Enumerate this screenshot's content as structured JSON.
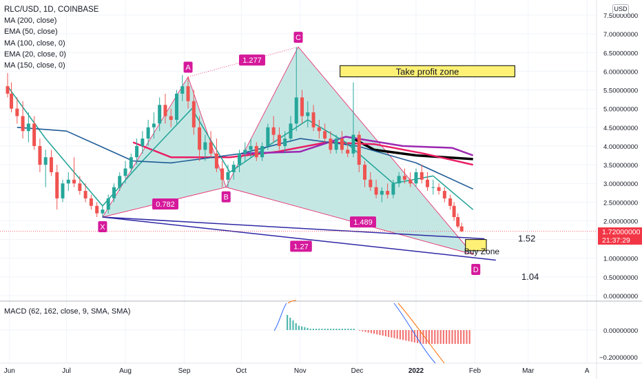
{
  "header": {
    "symbol_title": "RLC/USD, 1D, COINBASE",
    "indicators": [
      "MA (200, close)",
      "EMA (50, close)",
      "MA (100, close, 0)",
      "EMA (20, close, 0)",
      "MA (150, close, 0)"
    ],
    "macd_label": "MACD (62, 162, close, 9, SMA, SMA)",
    "currency": "USD"
  },
  "price_tag": {
    "price": "1.72000000",
    "countdown": "21:37:29"
  },
  "colors": {
    "up": "#26a69a",
    "down": "#ef5350",
    "pattern_fill": "#b2dfdb",
    "pattern_line": "#e91e63",
    "point_label_bg": "#d5199b",
    "wedge_line": "#2e27a4",
    "ma200": "#000000",
    "ema50": "#e91e63",
    "ma100": "#9c27b0",
    "ema20": "#26a69a",
    "ma150": "#1e5b96",
    "zone_fill": "#fff176"
  },
  "chart_data": {
    "type": "candlestick",
    "title": "RLC/USD, 1D, COINBASE",
    "x_tick_labels": [
      "Jun",
      "Jul",
      "Aug",
      "Sep",
      "Oct",
      "Nov",
      "Dec",
      "2022",
      "Feb",
      "Mar",
      "A"
    ],
    "y_tick_labels": [
      "7.50000000",
      "7.00000000",
      "6.50000000",
      "6.00000000",
      "5.50000000",
      "5.00000000",
      "4.50000000",
      "4.00000000",
      "3.50000000",
      "3.00000000",
      "2.50000000",
      "2.00000000",
      "1.50000000",
      "1.00000000",
      "0.50000000",
      "0.00000000"
    ],
    "ylim": [
      0,
      7.8
    ],
    "last_price": 1.72,
    "pattern_points": [
      {
        "label": "X",
        "date": "2021-07-20",
        "price": 2.1
      },
      {
        "label": "A",
        "date": "2021-09-03",
        "price": 5.85
      },
      {
        "label": "B",
        "date": "2021-09-23",
        "price": 2.9
      },
      {
        "label": "C",
        "date": "2021-10-31",
        "price": 6.65
      },
      {
        "label": "D",
        "date": "2022-01-31",
        "price": 1.1
      }
    ],
    "ratios": [
      {
        "label": "0.782",
        "leg": "XA-B"
      },
      {
        "label": "1.277",
        "leg": "A-C"
      },
      {
        "label": "1.489",
        "leg": "B-D"
      },
      {
        "label": "1.27",
        "leg": "X-D"
      }
    ],
    "zones": [
      {
        "label": "Take profit zone",
        "price_low": 5.85,
        "price_high": 6.15
      },
      {
        "label": "Buy Zone",
        "price_low": 1.2,
        "price_high": 1.5
      }
    ],
    "level_labels": [
      "1.52",
      "1.04"
    ],
    "ohlc": [
      {
        "d": "2021-05-31",
        "o": 5.6,
        "h": 5.95,
        "l": 5.3,
        "c": 5.4
      },
      {
        "d": "2021-06-02",
        "o": 5.4,
        "h": 5.7,
        "l": 4.9,
        "c": 5.0
      },
      {
        "d": "2021-06-05",
        "o": 5.0,
        "h": 5.3,
        "l": 4.6,
        "c": 4.8
      },
      {
        "d": "2021-06-08",
        "o": 4.8,
        "h": 5.2,
        "l": 4.2,
        "c": 4.4
      },
      {
        "d": "2021-06-11",
        "o": 4.4,
        "h": 4.9,
        "l": 4.1,
        "c": 4.6
      },
      {
        "d": "2021-06-14",
        "o": 4.6,
        "h": 4.8,
        "l": 3.9,
        "c": 4.0
      },
      {
        "d": "2021-06-17",
        "o": 4.0,
        "h": 4.2,
        "l": 3.3,
        "c": 3.5
      },
      {
        "d": "2021-06-20",
        "o": 3.5,
        "h": 3.9,
        "l": 2.9,
        "c": 3.7
      },
      {
        "d": "2021-06-23",
        "o": 3.7,
        "h": 3.9,
        "l": 3.2,
        "c": 3.3
      },
      {
        "d": "2021-06-26",
        "o": 3.3,
        "h": 3.5,
        "l": 2.3,
        "c": 2.6
      },
      {
        "d": "2021-06-29",
        "o": 2.6,
        "h": 3.1,
        "l": 2.5,
        "c": 3.0
      },
      {
        "d": "2021-07-02",
        "o": 3.0,
        "h": 3.3,
        "l": 2.8,
        "c": 3.1
      },
      {
        "d": "2021-07-05",
        "o": 3.1,
        "h": 3.7,
        "l": 2.9,
        "c": 3.0
      },
      {
        "d": "2021-07-08",
        "o": 3.0,
        "h": 3.2,
        "l": 2.7,
        "c": 2.8
      },
      {
        "d": "2021-07-11",
        "o": 2.8,
        "h": 3.0,
        "l": 2.5,
        "c": 2.6
      },
      {
        "d": "2021-07-14",
        "o": 2.6,
        "h": 2.7,
        "l": 2.3,
        "c": 2.4
      },
      {
        "d": "2021-07-17",
        "o": 2.4,
        "h": 2.5,
        "l": 2.1,
        "c": 2.2
      },
      {
        "d": "2021-07-20",
        "o": 2.2,
        "h": 2.4,
        "l": 2.1,
        "c": 2.3
      },
      {
        "d": "2021-07-23",
        "o": 2.3,
        "h": 2.7,
        "l": 2.2,
        "c": 2.6
      },
      {
        "d": "2021-07-26",
        "o": 2.6,
        "h": 3.0,
        "l": 2.5,
        "c": 2.9
      },
      {
        "d": "2021-07-29",
        "o": 2.9,
        "h": 3.3,
        "l": 2.8,
        "c": 3.2
      },
      {
        "d": "2021-08-01",
        "o": 3.2,
        "h": 3.6,
        "l": 3.0,
        "c": 3.4
      },
      {
        "d": "2021-08-04",
        "o": 3.4,
        "h": 3.8,
        "l": 3.3,
        "c": 3.7
      },
      {
        "d": "2021-08-07",
        "o": 3.7,
        "h": 4.2,
        "l": 3.5,
        "c": 4.0
      },
      {
        "d": "2021-08-10",
        "o": 4.0,
        "h": 4.4,
        "l": 3.8,
        "c": 4.2
      },
      {
        "d": "2021-08-13",
        "o": 4.2,
        "h": 4.7,
        "l": 4.0,
        "c": 4.5
      },
      {
        "d": "2021-08-16",
        "o": 4.5,
        "h": 4.9,
        "l": 4.2,
        "c": 4.6
      },
      {
        "d": "2021-08-19",
        "o": 4.6,
        "h": 5.3,
        "l": 4.4,
        "c": 5.1
      },
      {
        "d": "2021-08-22",
        "o": 5.1,
        "h": 5.4,
        "l": 4.6,
        "c": 4.8
      },
      {
        "d": "2021-08-25",
        "o": 4.8,
        "h": 5.0,
        "l": 4.5,
        "c": 4.7
      },
      {
        "d": "2021-08-28",
        "o": 4.7,
        "h": 5.5,
        "l": 4.6,
        "c": 5.4
      },
      {
        "d": "2021-08-31",
        "o": 5.4,
        "h": 5.9,
        "l": 5.2,
        "c": 5.6
      },
      {
        "d": "2021-09-03",
        "o": 5.6,
        "h": 5.85,
        "l": 5.0,
        "c": 5.2
      },
      {
        "d": "2021-09-06",
        "o": 5.2,
        "h": 5.5,
        "l": 4.3,
        "c": 4.5
      },
      {
        "d": "2021-09-09",
        "o": 4.5,
        "h": 4.8,
        "l": 3.6,
        "c": 3.9
      },
      {
        "d": "2021-09-12",
        "o": 3.9,
        "h": 4.3,
        "l": 3.6,
        "c": 4.1
      },
      {
        "d": "2021-09-15",
        "o": 4.1,
        "h": 4.4,
        "l": 3.7,
        "c": 3.8
      },
      {
        "d": "2021-09-18",
        "o": 3.8,
        "h": 4.2,
        "l": 3.3,
        "c": 3.4
      },
      {
        "d": "2021-09-21",
        "o": 3.4,
        "h": 3.6,
        "l": 2.9,
        "c": 3.1
      },
      {
        "d": "2021-09-24",
        "o": 3.1,
        "h": 3.5,
        "l": 2.9,
        "c": 3.3
      },
      {
        "d": "2021-09-27",
        "o": 3.3,
        "h": 3.6,
        "l": 3.1,
        "c": 3.5
      },
      {
        "d": "2021-09-30",
        "o": 3.5,
        "h": 3.9,
        "l": 3.3,
        "c": 3.8
      },
      {
        "d": "2021-10-03",
        "o": 3.8,
        "h": 4.1,
        "l": 3.6,
        "c": 3.9
      },
      {
        "d": "2021-10-06",
        "o": 3.9,
        "h": 4.2,
        "l": 3.7,
        "c": 4.0
      },
      {
        "d": "2021-10-09",
        "o": 4.0,
        "h": 4.1,
        "l": 3.6,
        "c": 3.7
      },
      {
        "d": "2021-10-12",
        "o": 3.7,
        "h": 4.1,
        "l": 3.6,
        "c": 4.0
      },
      {
        "d": "2021-10-15",
        "o": 4.0,
        "h": 4.6,
        "l": 3.9,
        "c": 4.5
      },
      {
        "d": "2021-10-18",
        "o": 4.5,
        "h": 4.8,
        "l": 4.1,
        "c": 4.3
      },
      {
        "d": "2021-10-21",
        "o": 4.3,
        "h": 4.5,
        "l": 3.9,
        "c": 4.0
      },
      {
        "d": "2021-10-24",
        "o": 4.0,
        "h": 4.4,
        "l": 3.8,
        "c": 4.2
      },
      {
        "d": "2021-10-27",
        "o": 4.2,
        "h": 4.8,
        "l": 4.1,
        "c": 4.6
      },
      {
        "d": "2021-10-30",
        "o": 4.6,
        "h": 6.65,
        "l": 4.4,
        "c": 5.3
      },
      {
        "d": "2021-11-02",
        "o": 5.3,
        "h": 5.5,
        "l": 4.6,
        "c": 4.8
      },
      {
        "d": "2021-11-05",
        "o": 4.8,
        "h": 5.2,
        "l": 4.5,
        "c": 4.9
      },
      {
        "d": "2021-11-08",
        "o": 4.9,
        "h": 5.1,
        "l": 4.4,
        "c": 4.5
      },
      {
        "d": "2021-11-11",
        "o": 4.5,
        "h": 4.7,
        "l": 4.2,
        "c": 4.4
      },
      {
        "d": "2021-11-14",
        "o": 4.4,
        "h": 4.6,
        "l": 4.1,
        "c": 4.2
      },
      {
        "d": "2021-11-17",
        "o": 4.2,
        "h": 4.4,
        "l": 3.8,
        "c": 3.9
      },
      {
        "d": "2021-11-20",
        "o": 3.9,
        "h": 4.3,
        "l": 3.8,
        "c": 4.2
      },
      {
        "d": "2021-11-23",
        "o": 4.2,
        "h": 4.4,
        "l": 3.8,
        "c": 3.9
      },
      {
        "d": "2021-11-26",
        "o": 3.9,
        "h": 4.1,
        "l": 3.7,
        "c": 3.8
      },
      {
        "d": "2021-11-29",
        "o": 3.8,
        "h": 5.7,
        "l": 3.7,
        "c": 4.3
      },
      {
        "d": "2021-12-02",
        "o": 4.3,
        "h": 4.4,
        "l": 3.3,
        "c": 3.5
      },
      {
        "d": "2021-12-05",
        "o": 3.5,
        "h": 3.6,
        "l": 2.9,
        "c": 3.1
      },
      {
        "d": "2021-12-08",
        "o": 3.1,
        "h": 3.3,
        "l": 2.8,
        "c": 2.9
      },
      {
        "d": "2021-12-11",
        "o": 2.9,
        "h": 3.1,
        "l": 2.6,
        "c": 2.7
      },
      {
        "d": "2021-12-14",
        "o": 2.7,
        "h": 2.9,
        "l": 2.5,
        "c": 2.8
      },
      {
        "d": "2021-12-17",
        "o": 2.8,
        "h": 3.0,
        "l": 2.6,
        "c": 2.7
      },
      {
        "d": "2021-12-20",
        "o": 2.7,
        "h": 3.1,
        "l": 2.6,
        "c": 3.0
      },
      {
        "d": "2021-12-23",
        "o": 3.0,
        "h": 3.3,
        "l": 2.9,
        "c": 3.2
      },
      {
        "d": "2021-12-26",
        "o": 3.2,
        "h": 3.4,
        "l": 3.0,
        "c": 3.1
      },
      {
        "d": "2021-12-29",
        "o": 3.1,
        "h": 3.3,
        "l": 2.9,
        "c": 3.0
      },
      {
        "d": "2022-01-01",
        "o": 3.0,
        "h": 3.4,
        "l": 2.9,
        "c": 3.3
      },
      {
        "d": "2022-01-04",
        "o": 3.3,
        "h": 3.5,
        "l": 3.0,
        "c": 3.1
      },
      {
        "d": "2022-01-07",
        "o": 3.1,
        "h": 3.3,
        "l": 2.8,
        "c": 2.9
      },
      {
        "d": "2022-01-10",
        "o": 2.9,
        "h": 3.1,
        "l": 2.7,
        "c": 2.9
      },
      {
        "d": "2022-01-13",
        "o": 2.9,
        "h": 3.0,
        "l": 2.7,
        "c": 2.8
      },
      {
        "d": "2022-01-16",
        "o": 2.8,
        "h": 2.9,
        "l": 2.5,
        "c": 2.6
      },
      {
        "d": "2022-01-19",
        "o": 2.6,
        "h": 2.7,
        "l": 2.3,
        "c": 2.4
      },
      {
        "d": "2022-01-21",
        "o": 2.4,
        "h": 2.5,
        "l": 2.0,
        "c": 2.1
      },
      {
        "d": "2022-01-23",
        "o": 2.1,
        "h": 2.2,
        "l": 1.8,
        "c": 1.85
      },
      {
        "d": "2022-01-25",
        "o": 1.85,
        "h": 1.95,
        "l": 1.7,
        "c": 1.72
      }
    ],
    "moving_averages": [
      {
        "name": "MA (200, close)",
        "color": "#000000",
        "points": [
          [
            "2021-11-29",
            4.2
          ],
          [
            "2021-12-10",
            3.9
          ],
          [
            "2022-01-01",
            3.75
          ],
          [
            "2022-01-31",
            3.65
          ]
        ]
      },
      {
        "name": "EMA (50, close)",
        "color": "#e91e63",
        "points": [
          [
            "2021-08-05",
            4.1
          ],
          [
            "2021-08-25",
            3.7
          ],
          [
            "2021-09-25",
            3.7
          ],
          [
            "2021-10-20",
            3.85
          ],
          [
            "2021-11-15",
            4.1
          ],
          [
            "2021-12-10",
            4.05
          ],
          [
            "2022-01-05",
            3.8
          ],
          [
            "2022-01-31",
            3.5
          ]
        ]
      },
      {
        "name": "MA (100, close, 0)",
        "color": "#9c27b0",
        "points": [
          [
            "2021-10-01",
            3.8
          ],
          [
            "2021-11-01",
            3.85
          ],
          [
            "2021-11-25",
            4.25
          ],
          [
            "2021-12-25",
            4.0
          ],
          [
            "2022-01-20",
            3.95
          ],
          [
            "2022-01-31",
            3.75
          ]
        ]
      },
      {
        "name": "EMA (20, close, 0)",
        "color": "#26a69a",
        "points": [
          [
            "2021-05-31",
            5.6
          ],
          [
            "2021-06-20",
            4.2
          ],
          [
            "2021-07-20",
            2.4
          ],
          [
            "2021-08-10",
            3.6
          ],
          [
            "2021-09-05",
            5.0
          ],
          [
            "2021-09-25",
            3.3
          ],
          [
            "2021-10-15",
            4.0
          ],
          [
            "2021-11-05",
            4.7
          ],
          [
            "2021-11-25",
            4.1
          ],
          [
            "2021-12-20",
            3.0
          ],
          [
            "2022-01-10",
            3.2
          ],
          [
            "2022-01-31",
            2.3
          ]
        ]
      },
      {
        "name": "MA (150, close, 0)",
        "color": "#1e5b96",
        "points": [
          [
            "2021-06-05",
            4.5
          ],
          [
            "2021-07-01",
            4.4
          ],
          [
            "2021-08-05",
            3.6
          ],
          [
            "2021-08-25",
            3.55
          ],
          [
            "2021-10-01",
            3.8
          ],
          [
            "2021-11-01",
            4.2
          ],
          [
            "2021-12-01",
            4.0
          ],
          [
            "2022-01-01",
            3.55
          ],
          [
            "2022-01-31",
            2.85
          ]
        ]
      }
    ]
  }
}
